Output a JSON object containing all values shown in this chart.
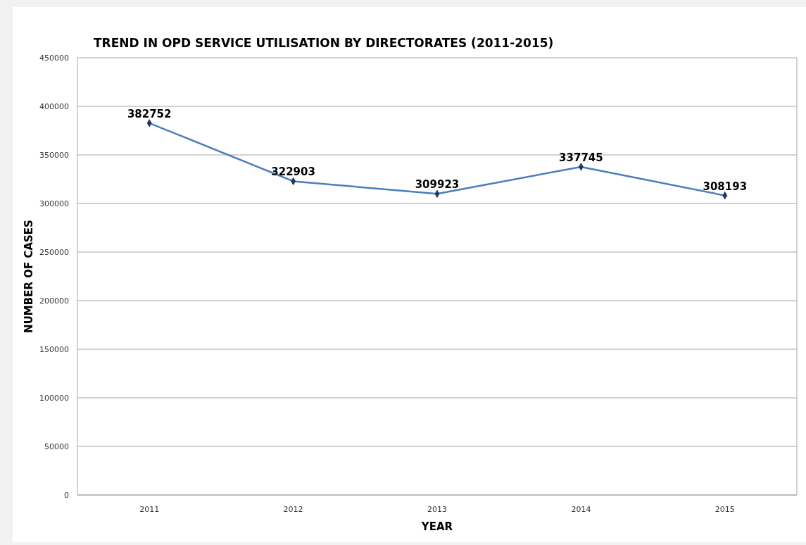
{
  "chart_data": {
    "type": "line",
    "title": "TREND IN OPD SERVICE UTILISATION BY DIRECTORATES  (2011-2015)",
    "xlabel": "YEAR",
    "ylabel": "NUMBER OF CASES",
    "categories": [
      "2011",
      "2012",
      "2013",
      "2014",
      "2015"
    ],
    "series": [
      {
        "color": "#4a7ebb",
        "values": [
          382752,
          322903,
          309923,
          337745,
          308193
        ]
      }
    ],
    "ylim": [
      0,
      450000
    ],
    "yticks": [
      0,
      50000,
      100000,
      150000,
      200000,
      250000,
      300000,
      350000,
      400000,
      450000
    ],
    "grid": "y",
    "marker": "diamond",
    "data_labels": true
  }
}
